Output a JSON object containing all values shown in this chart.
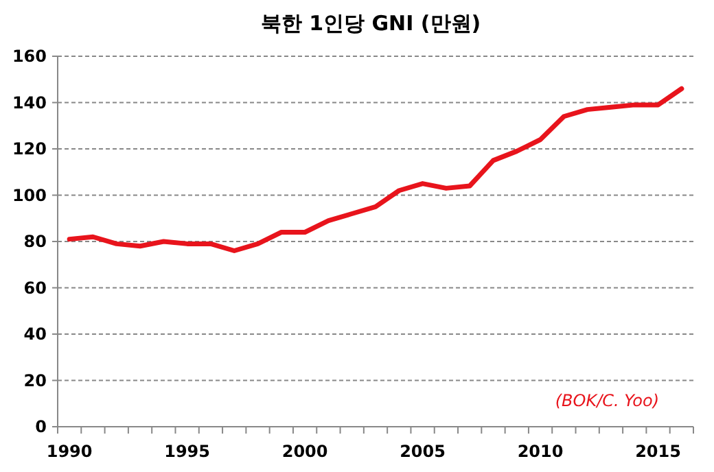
{
  "chart_data": {
    "type": "line",
    "title": "북한 1인당 GNI (만원)",
    "categories": [
      "1990",
      null,
      null,
      null,
      null,
      "1995",
      null,
      null,
      null,
      null,
      "2000",
      null,
      null,
      null,
      null,
      "2005",
      null,
      null,
      null,
      null,
      "2010",
      null,
      null,
      null,
      null,
      "2015",
      null
    ],
    "series": [
      {
        "color": "#e8141c",
        "values": [
          81,
          82,
          79,
          78,
          80,
          79,
          79,
          76,
          79,
          84,
          84,
          89,
          92,
          95,
          102,
          105,
          103,
          104,
          115,
          119,
          124,
          134,
          137,
          138,
          139,
          139,
          146
        ]
      }
    ],
    "ylim": [
      0,
      160
    ],
    "yticks": [
      0,
      20,
      40,
      60,
      80,
      100,
      120,
      140,
      160
    ],
    "grid": "y",
    "marker": "none",
    "line_style": "solid",
    "annotations": [
      "(BOK/C. Yoo)"
    ]
  }
}
